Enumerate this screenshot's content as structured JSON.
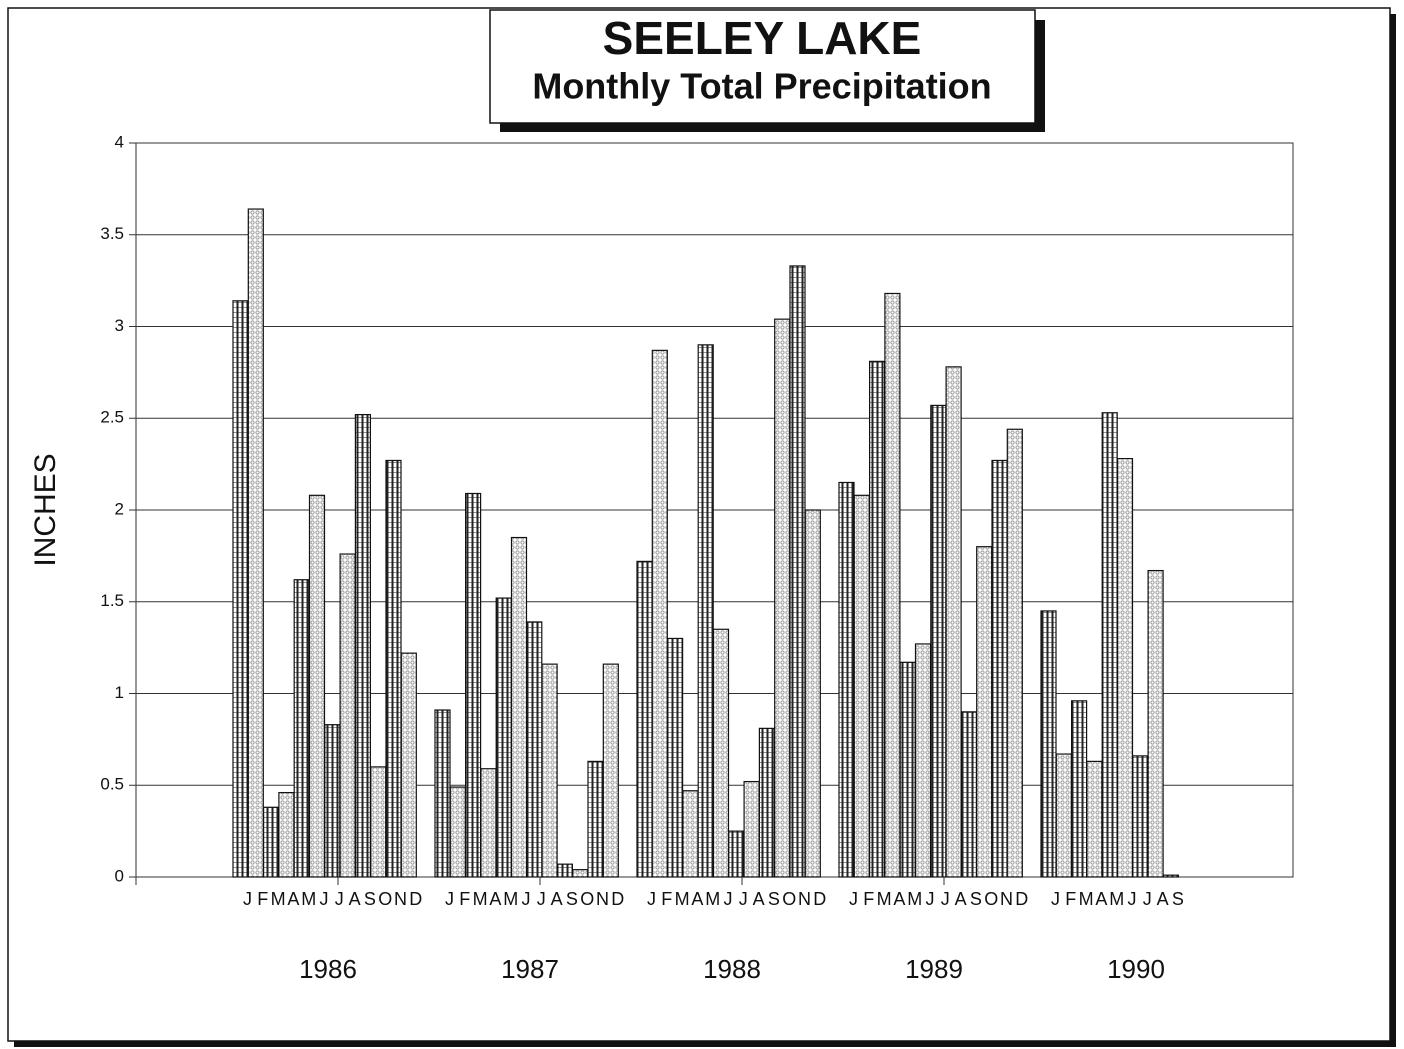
{
  "chart_data": {
    "type": "bar",
    "title": "SEELEY LAKE",
    "subtitle": "Monthly Total Precipitation",
    "y_label": "INCHES",
    "ylim": [
      0,
      4
    ],
    "yticks": [
      0,
      0.5,
      1,
      1.5,
      2,
      2.5,
      3,
      3.5,
      4
    ],
    "grid": true,
    "colors": [
      "#222222",
      "#9a9a9a"
    ],
    "groups": [
      {
        "label": "1986",
        "categories": [
          "J",
          "F",
          "M",
          "A",
          "M",
          "J",
          "J",
          "A",
          "S",
          "O",
          "N",
          "D"
        ],
        "values": [
          3.14,
          3.64,
          0.38,
          0.46,
          1.62,
          2.08,
          0.83,
          1.76,
          2.52,
          0.6,
          2.27,
          1.22
        ]
      },
      {
        "label": "1987",
        "categories": [
          "J",
          "F",
          "M",
          "A",
          "M",
          "J",
          "J",
          "A",
          "S",
          "O",
          "N",
          "D"
        ],
        "values": [
          0.91,
          0.49,
          2.09,
          0.59,
          1.52,
          1.85,
          1.39,
          1.16,
          0.07,
          0.04,
          0.63,
          1.16
        ]
      },
      {
        "label": "1988",
        "categories": [
          "J",
          "F",
          "M",
          "A",
          "M",
          "J",
          "J",
          "A",
          "S",
          "O",
          "N",
          "D"
        ],
        "values": [
          1.72,
          2.87,
          1.3,
          0.47,
          2.9,
          1.35,
          0.25,
          0.52,
          0.81,
          3.04,
          3.33,
          2.0
        ]
      },
      {
        "label": "1989",
        "categories": [
          "J",
          "F",
          "M",
          "A",
          "M",
          "J",
          "J",
          "A",
          "S",
          "O",
          "N",
          "D"
        ],
        "values": [
          2.15,
          2.08,
          2.81,
          3.18,
          1.17,
          1.27,
          2.57,
          2.78,
          0.9,
          1.8,
          2.27,
          2.44
        ]
      },
      {
        "label": "1990",
        "categories": [
          "J",
          "F",
          "M",
          "A",
          "M",
          "J",
          "J",
          "A",
          "S"
        ],
        "values": [
          1.45,
          0.67,
          0.96,
          0.63,
          2.53,
          2.28,
          0.66,
          1.67,
          0.01
        ]
      }
    ]
  }
}
